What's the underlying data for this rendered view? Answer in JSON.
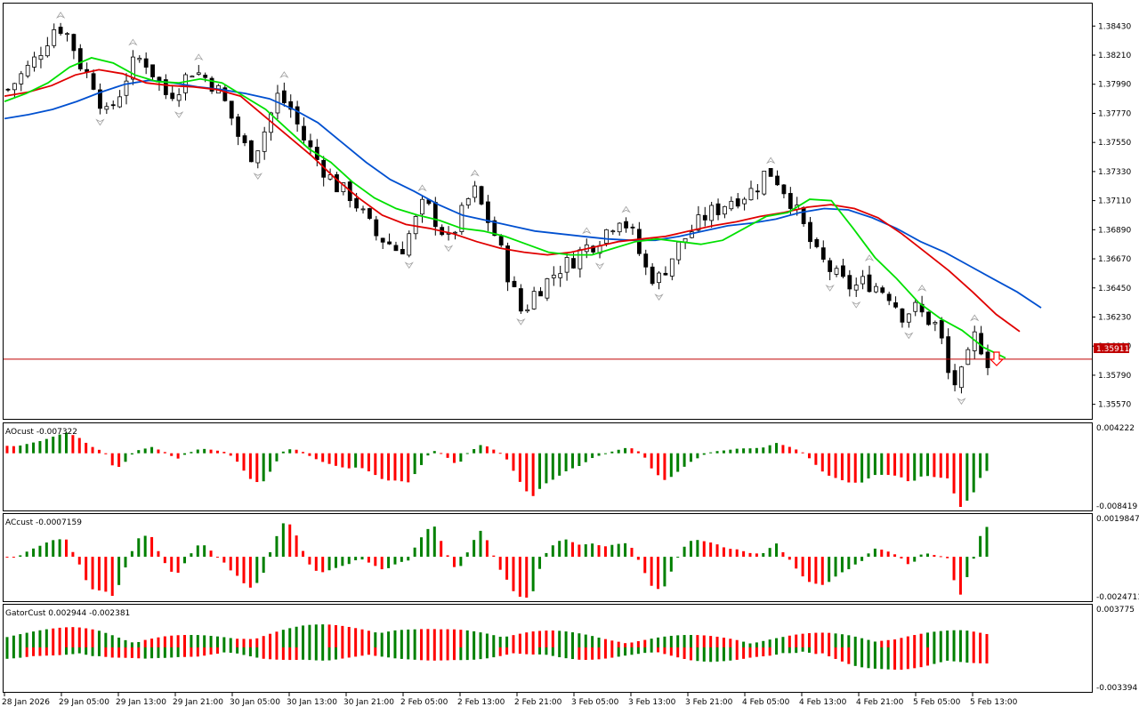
{
  "colors": {
    "background": "#ffffff",
    "frame": "#000000",
    "bull_body": "#ffffff",
    "bear_body": "#000000",
    "ma_green": "#00e000",
    "ma_red": "#e00000",
    "ma_blue": "#0050d0",
    "hist_up": "#008000",
    "hist_down": "#ff0000",
    "price_line": "#c00000",
    "fractal": "#a0a0a0",
    "arrow": "#ff0000"
  },
  "price_panel": {
    "current_price_label": "1.35911",
    "signal_arrow_icon": "down-arrow-icon"
  },
  "indicators": {
    "ao_label": "AOcust -0.007322",
    "ao_max": "0.004222",
    "ao_min": "-0.008419",
    "ac_label": "ACcust -0.0007159",
    "ac_max": "0.0019847",
    "ac_min": "-0.0024711",
    "gator_label": "GatorCust 0.002944 -0.002381",
    "gator_max": "0.003775",
    "gator_min": "-0.003394"
  },
  "chart_data": {
    "type": "candlestick",
    "title": "",
    "ylim": [
      1.3546,
      1.386
    ],
    "y_ticks": [
      "1.38430",
      "1.38210",
      "1.37990",
      "1.37770",
      "1.37550",
      "1.37330",
      "1.37110",
      "1.36890",
      "1.36670",
      "1.36450",
      "1.36230",
      "1.36010",
      "1.35790",
      "1.35570"
    ],
    "x_ticks": [
      "28 Jan 2026",
      "29 Jan 05:00",
      "29 Jan 13:00",
      "29 Jan 21:00",
      "30 Jan 05:00",
      "30 Jan 13:00",
      "30 Jan 21:00",
      "2 Feb 05:00",
      "2 Feb 13:00",
      "2 Feb 21:00",
      "3 Feb 05:00",
      "3 Feb 13:00",
      "3 Feb 21:00",
      "4 Feb 05:00",
      "4 Feb 13:00",
      "4 Feb 21:00",
      "5 Feb 05:00",
      "5 Feb 13:00"
    ],
    "current_price": 1.35911,
    "close_path": [
      1.3795,
      1.3805,
      1.3815,
      1.383,
      1.3845,
      1.3835,
      1.3812,
      1.38,
      1.3775,
      1.379,
      1.3812,
      1.382,
      1.3805,
      1.379,
      1.3798,
      1.381,
      1.3805,
      1.3797,
      1.378,
      1.3755,
      1.3745,
      1.3765,
      1.379,
      1.3782,
      1.376,
      1.3745,
      1.3732,
      1.372,
      1.3715,
      1.37,
      1.3685,
      1.368,
      1.3672,
      1.369,
      1.371,
      1.3695,
      1.368,
      1.37,
      1.372,
      1.37,
      1.368,
      1.365,
      1.3625,
      1.3642,
      1.365,
      1.366,
      1.3665,
      1.3675,
      1.368,
      1.369,
      1.37,
      1.3685,
      1.366,
      1.365,
      1.3665,
      1.368,
      1.369,
      1.37,
      1.3705,
      1.3712,
      1.3715,
      1.372,
      1.3735,
      1.3725,
      1.371,
      1.369,
      1.367,
      1.366,
      1.365,
      1.3645,
      1.365,
      1.3646,
      1.364,
      1.3625,
      1.363,
      1.3622,
      1.3615,
      1.357,
      1.358,
      1.361,
      1.359
    ],
    "ma_green": [
      1.3786,
      1.3792,
      1.38,
      1.3812,
      1.3819,
      1.3815,
      1.3806,
      1.3801,
      1.38,
      1.3803,
      1.38,
      1.379,
      1.378,
      1.3765,
      1.375,
      1.374,
      1.3725,
      1.3713,
      1.3705,
      1.37,
      1.3696,
      1.369,
      1.3688,
      1.3684,
      1.3678,
      1.3672,
      1.367,
      1.367,
      1.3675,
      1.368,
      1.3682,
      1.368,
      1.3678,
      1.3681,
      1.369,
      1.3699,
      1.3702,
      1.3712,
      1.3711,
      1.369,
      1.3668,
      1.3652,
      1.3634,
      1.3622,
      1.3613,
      1.36,
      1.3592
    ],
    "ma_red": [
      1.379,
      1.3793,
      1.3798,
      1.3806,
      1.381,
      1.3807,
      1.38,
      1.3798,
      1.3797,
      1.3795,
      1.379,
      1.3775,
      1.376,
      1.3745,
      1.3728,
      1.3713,
      1.37,
      1.3693,
      1.369,
      1.3686,
      1.368,
      1.3675,
      1.3672,
      1.367,
      1.3672,
      1.3676,
      1.368,
      1.3682,
      1.3684,
      1.3688,
      1.3692,
      1.3695,
      1.3699,
      1.3702,
      1.3706,
      1.3708,
      1.3705,
      1.3698,
      1.3686,
      1.3672,
      1.3658,
      1.3642,
      1.3625,
      1.3612
    ],
    "ma_blue": [
      1.3773,
      1.3776,
      1.378,
      1.3786,
      1.3793,
      1.3799,
      1.3802,
      1.38,
      1.3797,
      1.3795,
      1.3792,
      1.3788,
      1.378,
      1.377,
      1.3755,
      1.374,
      1.3727,
      1.3718,
      1.3708,
      1.37,
      1.3696,
      1.3692,
      1.3688,
      1.3686,
      1.3684,
      1.3682,
      1.3681,
      1.3681,
      1.3684,
      1.3688,
      1.3692,
      1.3694,
      1.3697,
      1.3702,
      1.3705,
      1.3704,
      1.3698,
      1.369,
      1.368,
      1.3672,
      1.3662,
      1.3652,
      1.3642,
      1.363
    ]
  }
}
